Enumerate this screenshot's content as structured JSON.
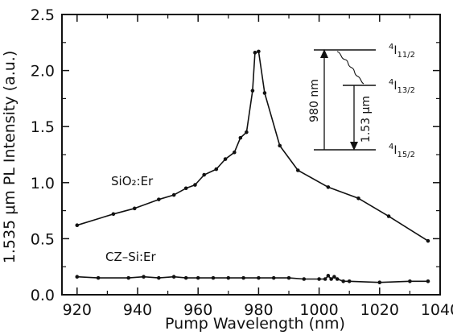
{
  "chart_data": {
    "type": "line",
    "xlabel": "Pump Wavelength (nm)",
    "ylabel": "1.535 μm PL Intensity (a.u.)",
    "xlim": [
      915,
      1040
    ],
    "ylim": [
      0.0,
      2.5
    ],
    "xticks": [
      920,
      940,
      960,
      980,
      1000,
      1020,
      1040
    ],
    "yticks": [
      0.0,
      0.5,
      1.0,
      1.5,
      2.0,
      2.5
    ],
    "ytick_labels": [
      "0.0",
      "0.5",
      "1.0",
      "1.5",
      "2.0",
      "2.5"
    ],
    "grid": false,
    "series": [
      {
        "name": "SiO₂:Er",
        "x": [
          920,
          932,
          939,
          947,
          952,
          956,
          959,
          962,
          966,
          969,
          972,
          974,
          976,
          978,
          978.8,
          980,
          982,
          987,
          993,
          1003,
          1013,
          1023,
          1036
        ],
        "y": [
          0.62,
          0.72,
          0.77,
          0.85,
          0.89,
          0.95,
          0.98,
          1.07,
          1.12,
          1.21,
          1.27,
          1.4,
          1.45,
          1.82,
          2.16,
          2.17,
          1.8,
          1.33,
          1.11,
          0.96,
          0.86,
          0.7,
          0.48
        ]
      },
      {
        "name": "CZ–Si:Er",
        "x": [
          920,
          927,
          937,
          942,
          947,
          952,
          956,
          960,
          965,
          970,
          975,
          980,
          985,
          990,
          995,
          1000,
          1002,
          1003,
          1004,
          1005,
          1006,
          1008,
          1010,
          1020,
          1030,
          1036
        ],
        "y": [
          0.16,
          0.15,
          0.15,
          0.16,
          0.15,
          0.16,
          0.15,
          0.15,
          0.15,
          0.15,
          0.15,
          0.15,
          0.15,
          0.15,
          0.14,
          0.14,
          0.14,
          0.17,
          0.14,
          0.16,
          0.14,
          0.12,
          0.12,
          0.11,
          0.12,
          0.12
        ]
      }
    ],
    "series_labels": [
      "SiO₂:Er",
      "CZ–Si:Er"
    ],
    "inset": {
      "upper_level": "4I11/2",
      "middle_level": "4I13/2",
      "lower_level": "4I15/2",
      "pump_label": "980 nm",
      "emission_label": "1.53 μm",
      "levels": [
        {
          "pre": "4",
          "main": "I",
          "sub": "11/2"
        },
        {
          "pre": "4",
          "main": "I",
          "sub": "13/2"
        },
        {
          "pre": "4",
          "main": "I",
          "sub": "15/2"
        }
      ]
    }
  }
}
